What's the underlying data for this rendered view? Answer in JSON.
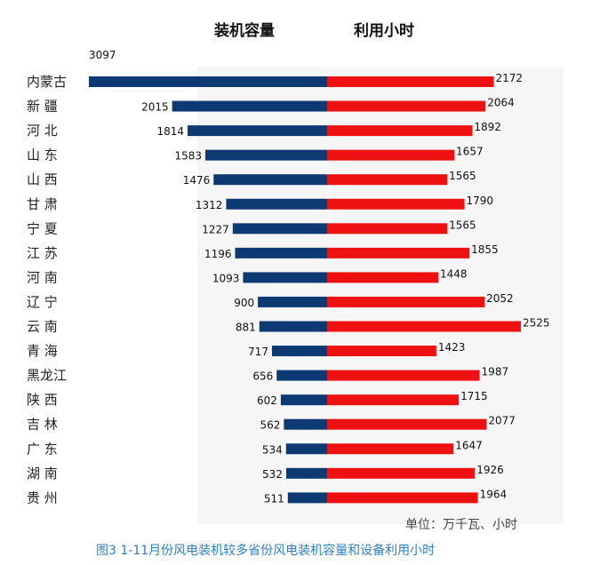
{
  "chart_data": {
    "type": "bar",
    "layout": "diverging-horizontal",
    "headers": {
      "left": "装机容量",
      "right": "利用小时"
    },
    "categories": [
      "内蒙古",
      "新 疆",
      "河 北",
      "山 东",
      "山 西",
      "甘 肃",
      "宁 夏",
      "江 苏",
      "河 南",
      "辽 宁",
      "云 南",
      "青 海",
      "黑龙江",
      "陕 西",
      "吉 林",
      "广 东",
      "湖 南",
      "贵 州"
    ],
    "series": [
      {
        "name": "装机容量",
        "values": [
          3097,
          2015,
          1814,
          1583,
          1476,
          1312,
          1227,
          1196,
          1093,
          900,
          881,
          717,
          656,
          602,
          562,
          534,
          532,
          511
        ]
      },
      {
        "name": "利用小时",
        "values": [
          2172,
          2064,
          1892,
          1657,
          1565,
          1790,
          1565,
          1855,
          1448,
          2052,
          2525,
          1423,
          1987,
          1715,
          2077,
          1647,
          1926,
          1964
        ]
      }
    ],
    "colors": {
      "left": "#0e3a74",
      "right": "#ee1111"
    },
    "unit_note": "单位：万千瓦、小时",
    "caption": "图3  1-11月份风电装机较多省份风电装机容量和设备利用小时"
  }
}
